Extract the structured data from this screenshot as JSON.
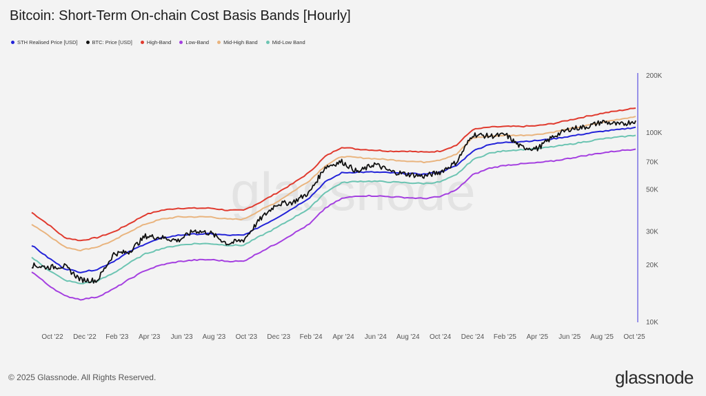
{
  "title": "Bitcoin: Short-Term On-chain Cost Basis Bands [Hourly]",
  "footer": {
    "copyright": "© 2025 Glassnode. All Rights Reserved.",
    "logo": "glassnode"
  },
  "watermark": "glassnode",
  "chart_data": {
    "type": "line",
    "title": "Bitcoin: Short-Term On-chain Cost Basis Bands [Hourly]",
    "y_scale": "log",
    "ylim": [
      10000,
      200000
    ],
    "y_ticks": [
      {
        "value": 10000,
        "label": "10K"
      },
      {
        "value": 20000,
        "label": "20K"
      },
      {
        "value": 30000,
        "label": "30K"
      },
      {
        "value": 50000,
        "label": "50K"
      },
      {
        "value": 70000,
        "label": "70K"
      },
      {
        "value": 100000,
        "label": "100K"
      },
      {
        "value": 200000,
        "label": "200K"
      }
    ],
    "x_ticks": [
      "Oct '22",
      "Dec '22",
      "Feb '23",
      "Apr '23",
      "Jun '23",
      "Aug '23",
      "Oct '23",
      "Dec '23",
      "Feb '24",
      "Apr '24",
      "Jun '24",
      "Aug '24",
      "Oct '24",
      "Dec '24",
      "Feb '25",
      "Apr '25",
      "Jun '25",
      "Aug '25",
      "Oct '25"
    ],
    "x_dates": [
      "2022-09-01",
      "2022-10-01",
      "2022-11-01",
      "2022-12-01",
      "2023-01-01",
      "2023-02-01",
      "2023-03-01",
      "2023-04-01",
      "2023-05-01",
      "2023-06-01",
      "2023-07-01",
      "2023-08-01",
      "2023-09-01",
      "2023-10-01",
      "2023-11-01",
      "2023-12-01",
      "2024-01-01",
      "2024-02-01",
      "2024-03-01",
      "2024-04-01",
      "2024-05-01",
      "2024-06-01",
      "2024-07-01",
      "2024-08-01",
      "2024-09-01",
      "2024-10-01",
      "2024-11-01",
      "2024-12-01",
      "2025-01-01",
      "2025-02-01",
      "2025-03-01",
      "2025-04-01",
      "2025-05-01",
      "2025-06-01",
      "2025-07-01",
      "2025-08-01",
      "2025-09-01",
      "2025-10-01"
    ],
    "legend_position": "top-left",
    "grid": false,
    "series": [
      {
        "name": "High-Band",
        "color": "#e03a2e",
        "values": [
          38000,
          33000,
          28000,
          27000,
          28000,
          30000,
          33000,
          37000,
          39000,
          40000,
          40000,
          40000,
          39000,
          39000,
          43000,
          48000,
          54000,
          62000,
          75000,
          84000,
          82000,
          81000,
          80000,
          80000,
          79000,
          80000,
          86000,
          104000,
          107000,
          108000,
          108000,
          109000,
          112000,
          117000,
          122000,
          127000,
          131000,
          135000
        ]
      },
      {
        "name": "Mid-High Band",
        "color": "#e9b47e",
        "values": [
          33000,
          29000,
          25000,
          24000,
          25000,
          27000,
          30000,
          33000,
          35000,
          36000,
          36000,
          36000,
          35000,
          35000,
          39000,
          43000,
          49000,
          56000,
          67000,
          75000,
          74000,
          73000,
          72000,
          71000,
          70000,
          72000,
          77000,
          94000,
          96000,
          97000,
          97000,
          98000,
          101000,
          105000,
          109000,
          114000,
          118000,
          122000
        ]
      },
      {
        "name": "STH Realised Price [USD]",
        "color": "#2323d8",
        "values": [
          25500,
          22000,
          19200,
          18400,
          19000,
          21000,
          23500,
          26000,
          27800,
          28800,
          29200,
          29300,
          28800,
          28800,
          32000,
          35500,
          40000,
          45500,
          55000,
          61500,
          62000,
          62000,
          61500,
          61000,
          60500,
          62000,
          67000,
          80000,
          87000,
          89000,
          90000,
          91000,
          93000,
          96000,
          99000,
          102000,
          104000,
          107000
        ]
      },
      {
        "name": "Mid-Low Band",
        "color": "#6cc4b2",
        "values": [
          22000,
          19000,
          16700,
          16000,
          16500,
          18200,
          20500,
          23000,
          24500,
          25500,
          26000,
          26000,
          25500,
          25500,
          28500,
          31500,
          35500,
          40000,
          48500,
          54500,
          55500,
          55500,
          55000,
          54500,
          54000,
          55000,
          60000,
          72000,
          78000,
          80500,
          81500,
          82500,
          84500,
          87000,
          90000,
          93000,
          95000,
          97000
        ]
      },
      {
        "name": "Low-Band",
        "color": "#a43fe0",
        "values": [
          18500,
          15800,
          13800,
          13200,
          13600,
          15000,
          16800,
          18800,
          20100,
          20900,
          21300,
          21400,
          21000,
          21000,
          23500,
          26000,
          29300,
          33000,
          40000,
          45000,
          46500,
          46500,
          46000,
          45500,
          45000,
          46000,
          50000,
          60000,
          65000,
          67500,
          68500,
          69500,
          71000,
          73500,
          76000,
          78500,
          80500,
          82000
        ]
      },
      {
        "name": "BTC: Price [USD]",
        "color": "#111111",
        "values": [
          20000,
          19500,
          19800,
          16800,
          16600,
          23000,
          23500,
          28500,
          28000,
          27000,
          30500,
          29500,
          26000,
          27200,
          35000,
          42000,
          43000,
          48500,
          66000,
          70500,
          62000,
          68500,
          62500,
          60500,
          59000,
          62000,
          70000,
          98000,
          96000,
          97500,
          84000,
          82500,
          96000,
          105000,
          107500,
          114500,
          110000,
          116000
        ]
      }
    ]
  },
  "legend": [
    {
      "label": "STH Realised Price [USD]",
      "color": "#2323d8"
    },
    {
      "label": "BTC: Price [USD]",
      "color": "#111111"
    },
    {
      "label": "High-Band",
      "color": "#e03a2e"
    },
    {
      "label": "Low-Band",
      "color": "#a43fe0"
    },
    {
      "label": "Mid-High Band",
      "color": "#e9b47e"
    },
    {
      "label": "Mid-Low Band",
      "color": "#6cc4b2"
    }
  ]
}
